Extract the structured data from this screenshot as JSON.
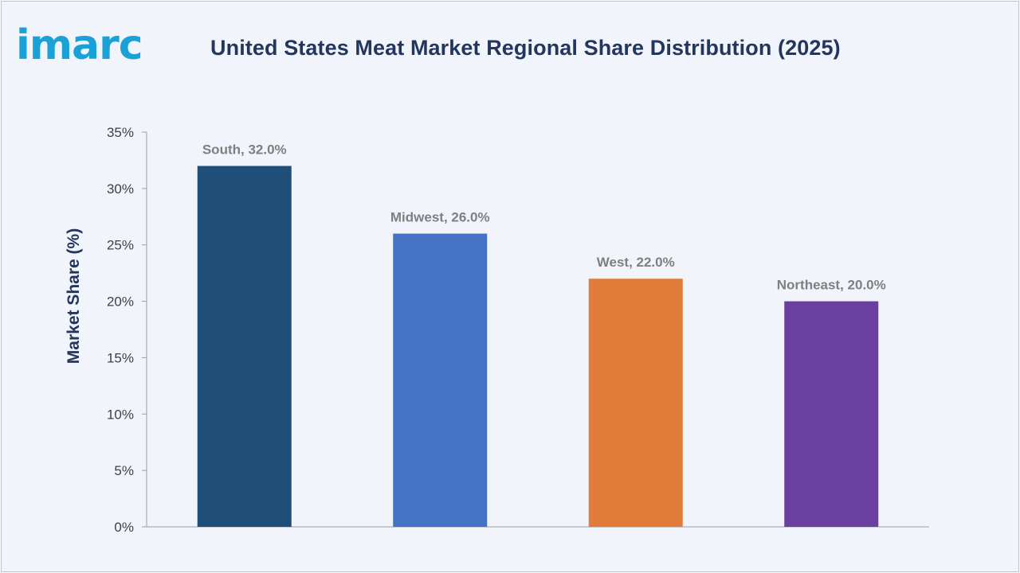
{
  "brand": {
    "logo_text": "imarc",
    "logo_color": "#1aa1d8"
  },
  "colors": {
    "title": "#22365e",
    "axis": "#9aa0a6",
    "tick_label": "#404040",
    "data_label": "#7f7f7f",
    "background": "#f1f4fa"
  },
  "chart_data": {
    "type": "bar",
    "title": "United States Meat Market Regional Share Distribution (2025)",
    "xlabel": "",
    "ylabel": "Market Share (%)",
    "categories": [
      "South",
      "Midwest",
      "West",
      "Northeast"
    ],
    "values": [
      32.0,
      26.0,
      22.0,
      20.0
    ],
    "data_labels": [
      "South, 32.0%",
      "Midwest, 26.0%",
      "West, 22.0%",
      "Northeast, 20.0%"
    ],
    "bar_colors": [
      "#1f4e79",
      "#4472c4",
      "#e07b39",
      "#6b3fa0"
    ],
    "ylim": [
      0,
      35
    ],
    "yticks": [
      0,
      5,
      10,
      15,
      20,
      25,
      30,
      35
    ],
    "ytick_labels": [
      "0%",
      "5%",
      "10%",
      "15%",
      "20%",
      "25%",
      "30%",
      "35%"
    ],
    "grid": false,
    "legend": "none"
  }
}
